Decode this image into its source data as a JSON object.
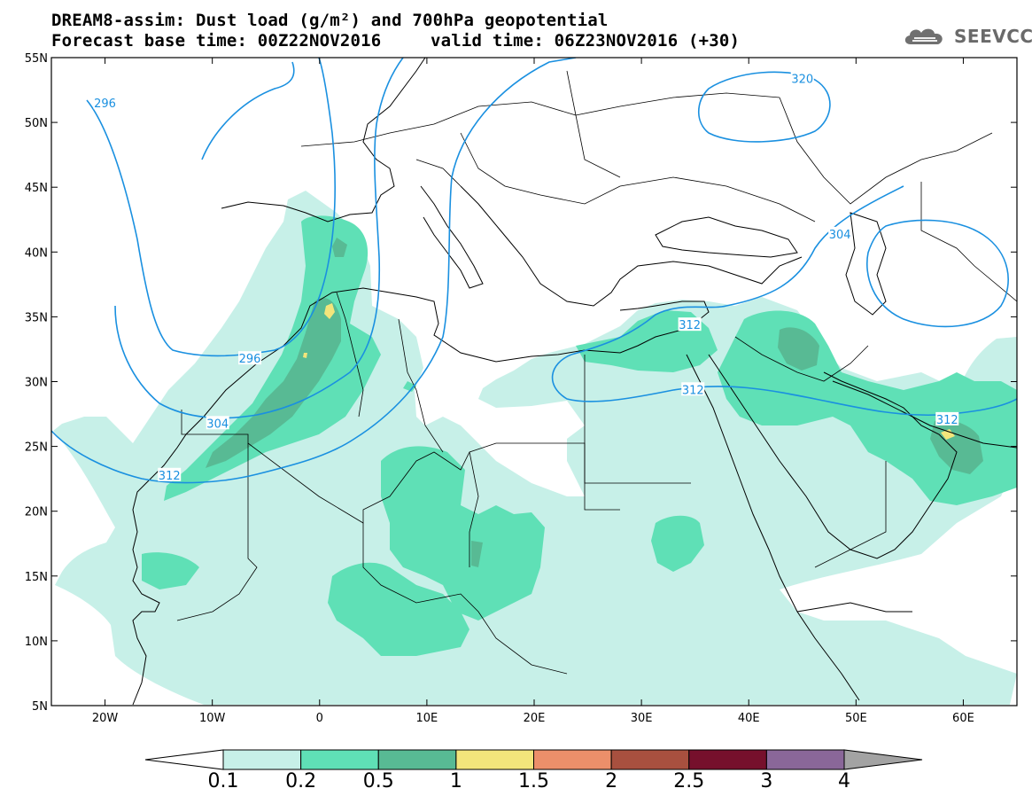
{
  "title": {
    "line1": "DREAM8-assim: Dust load (g/m²) and 700hPa geopotential",
    "line2_base": "Forecast base time: 00Z22NOV2016",
    "line2_valid": "valid time: 06Z23NOV2016 (+30)"
  },
  "logo": {
    "text": "SEEVCCC",
    "icon": "cloud-icon"
  },
  "map": {
    "lon_range": [
      -25,
      65
    ],
    "lat_range": [
      5,
      55
    ],
    "lon_ticks": [
      {
        "value": -20,
        "label": "20W"
      },
      {
        "value": -10,
        "label": "10W"
      },
      {
        "value": 0,
        "label": "0"
      },
      {
        "value": 10,
        "label": "10E"
      },
      {
        "value": 20,
        "label": "20E"
      },
      {
        "value": 30,
        "label": "30E"
      },
      {
        "value": 40,
        "label": "40E"
      },
      {
        "value": 50,
        "label": "50E"
      },
      {
        "value": 60,
        "label": "60E"
      }
    ],
    "lat_ticks": [
      {
        "value": 55,
        "label": "55N"
      },
      {
        "value": 50,
        "label": "50N"
      },
      {
        "value": 45,
        "label": "45N"
      },
      {
        "value": 40,
        "label": "40N"
      },
      {
        "value": 35,
        "label": "35N"
      },
      {
        "value": 30,
        "label": "30N"
      },
      {
        "value": 25,
        "label": "25N"
      },
      {
        "value": 20,
        "label": "20N"
      },
      {
        "value": 15,
        "label": "15N"
      },
      {
        "value": 10,
        "label": "10N"
      },
      {
        "value": 5,
        "label": "5N"
      }
    ],
    "contour_color": "#1a90e0",
    "contour_labels": [
      {
        "text": "296",
        "lon": -20,
        "lat": 51.5
      },
      {
        "text": "296",
        "lon": -6.5,
        "lat": 31.8
      },
      {
        "text": "304",
        "lon": -9.5,
        "lat": 26.8
      },
      {
        "text": "304",
        "lon": 48.5,
        "lat": 41.4
      },
      {
        "text": "312",
        "lon": -14,
        "lat": 22.8
      },
      {
        "text": "312",
        "lon": 34.5,
        "lat": 34.4
      },
      {
        "text": "312",
        "lon": 34.8,
        "lat": 29.4
      },
      {
        "text": "312",
        "lon": 58.5,
        "lat": 27.1
      },
      {
        "text": "320",
        "lon": 45,
        "lat": 53.4
      }
    ]
  },
  "colorbar": {
    "labels": [
      "0.1",
      "0.2",
      "0.5",
      "1",
      "1.5",
      "2",
      "2.5",
      "3",
      "4"
    ],
    "colors": [
      "#c7f0e8",
      "#5fe0b6",
      "#58ba94",
      "#f3e57b",
      "#ec8f6a",
      "#a8503f",
      "#76102c",
      "#8a6799"
    ],
    "over_color": "#a3a3a3",
    "under_color": "#ffffff"
  }
}
